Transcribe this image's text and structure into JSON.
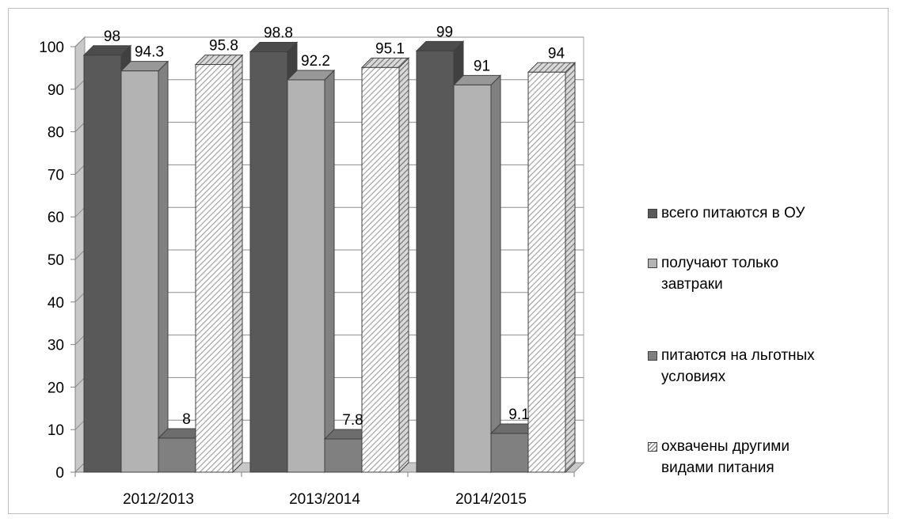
{
  "chart_data": {
    "type": "bar",
    "categories": [
      "2012/2013",
      "2013/2014",
      "2014/2015"
    ],
    "series": [
      {
        "name": "всего питаются в ОУ",
        "values": [
          98,
          98.8,
          99
        ],
        "color": "#595959",
        "pattern": "solid"
      },
      {
        "name": "получают только завтраки",
        "values": [
          94.3,
          92.2,
          91
        ],
        "color": "#b3b3b3",
        "pattern": "solid"
      },
      {
        "name": "питаются на льготных условиях",
        "values": [
          8,
          7.8,
          9.1
        ],
        "color": "#808080",
        "pattern": "solid"
      },
      {
        "name": "охвачены другими видами питания",
        "values": [
          95.8,
          95.1,
          94
        ],
        "color": "#ffffff",
        "pattern": "diagonal-hatch"
      }
    ],
    "data_labels": [
      [
        "98",
        "94.3",
        "8",
        "95.8"
      ],
      [
        "98.8",
        "92.2",
        "7.8",
        "95.1"
      ],
      [
        "99",
        "91",
        "9.1",
        "94"
      ]
    ],
    "yticks": [
      "0",
      "10",
      "20",
      "30",
      "40",
      "50",
      "60",
      "70",
      "80",
      "90",
      "100"
    ],
    "ylim": [
      0,
      100
    ],
    "title": "",
    "xlabel": "",
    "ylabel": "",
    "grid": true,
    "style": "3d-clustered-column",
    "legend_position": "right"
  }
}
